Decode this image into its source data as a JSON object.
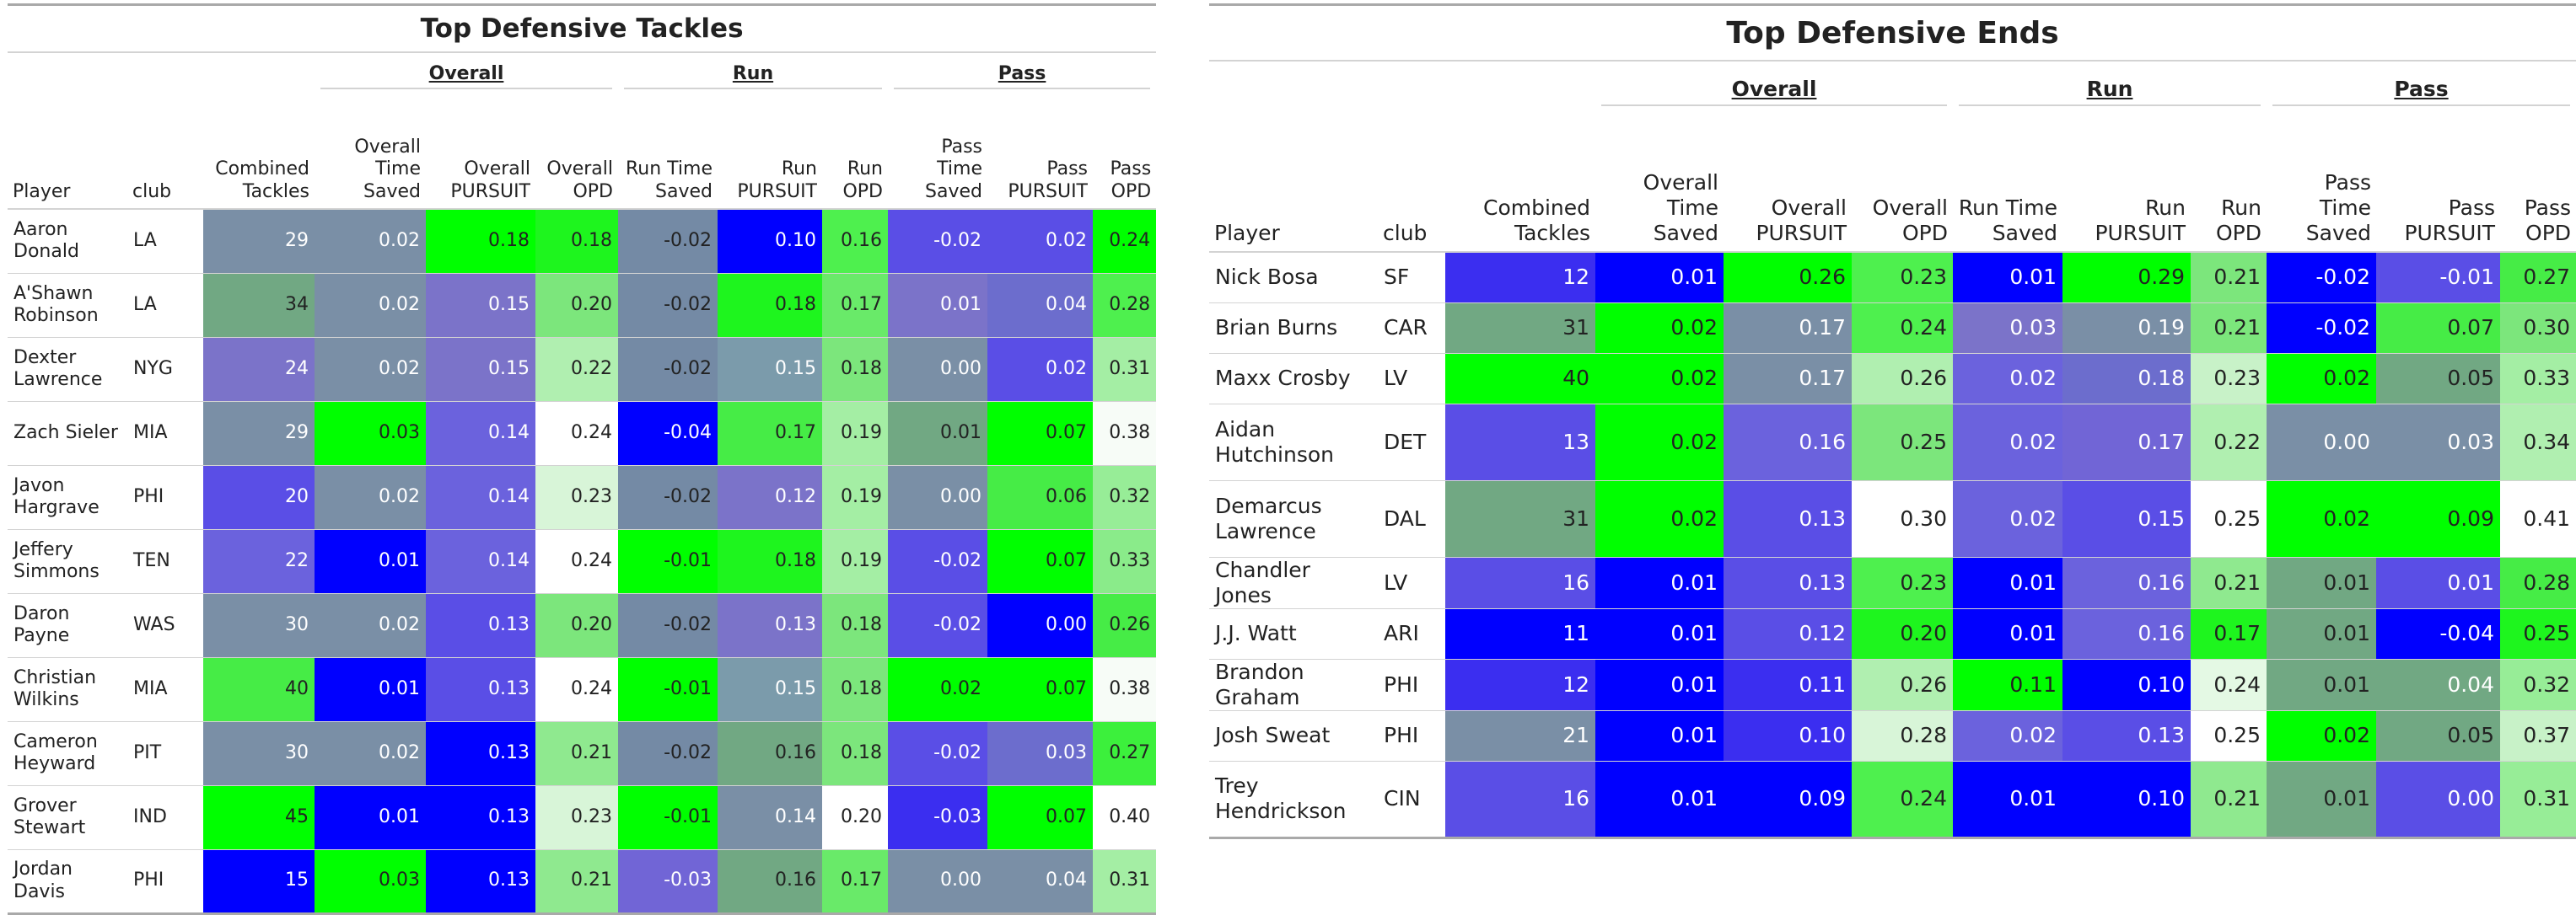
{
  "tables": [
    {
      "title": "Top Defensive Tackles",
      "spanners": {
        "overall": "Overall",
        "run": "Run",
        "pass": "Pass"
      },
      "columns": [
        "Player",
        "club",
        "Combined Tackles",
        "Overall Time Saved",
        "Overall PURSUIT",
        "Overall OPD",
        "Run Time Saved",
        "Run PURSUIT",
        "Run OPD",
        "Pass Time Saved",
        "Pass PURSUIT",
        "Pass OPD"
      ],
      "rows": [
        {
          "player": "Aaron Donald",
          "club": "LA",
          "values": [
            "29",
            "0.02",
            "0.18",
            "0.18",
            "-0.02",
            "0.10",
            "0.16",
            "-0.02",
            "0.02",
            "0.24"
          ]
        },
        {
          "player": "A'Shawn Robinson",
          "club": "LA",
          "values": [
            "34",
            "0.02",
            "0.15",
            "0.20",
            "-0.02",
            "0.18",
            "0.17",
            "0.01",
            "0.04",
            "0.28"
          ]
        },
        {
          "player": "Dexter Lawrence",
          "club": "NYG",
          "values": [
            "24",
            "0.02",
            "0.15",
            "0.22",
            "-0.02",
            "0.15",
            "0.18",
            "0.00",
            "0.02",
            "0.31"
          ]
        },
        {
          "player": "Zach Sieler",
          "club": "MIA",
          "values": [
            "29",
            "0.03",
            "0.14",
            "0.24",
            "-0.04",
            "0.17",
            "0.19",
            "0.01",
            "0.07",
            "0.38"
          ]
        },
        {
          "player": "Javon Hargrave",
          "club": "PHI",
          "values": [
            "20",
            "0.02",
            "0.14",
            "0.23",
            "-0.02",
            "0.12",
            "0.19",
            "0.00",
            "0.06",
            "0.32"
          ]
        },
        {
          "player": "Jeffery Simmons",
          "club": "TEN",
          "values": [
            "22",
            "0.01",
            "0.14",
            "0.24",
            "-0.01",
            "0.18",
            "0.19",
            "-0.02",
            "0.07",
            "0.33"
          ]
        },
        {
          "player": "Daron Payne",
          "club": "WAS",
          "values": [
            "30",
            "0.02",
            "0.13",
            "0.20",
            "-0.02",
            "0.13",
            "0.18",
            "-0.02",
            "0.00",
            "0.26"
          ]
        },
        {
          "player": "Christian Wilkins",
          "club": "MIA",
          "values": [
            "40",
            "0.01",
            "0.13",
            "0.24",
            "-0.01",
            "0.15",
            "0.18",
            "0.02",
            "0.07",
            "0.38"
          ]
        },
        {
          "player": "Cameron Heyward",
          "club": "PIT",
          "values": [
            "30",
            "0.02",
            "0.13",
            "0.21",
            "-0.02",
            "0.16",
            "0.18",
            "-0.02",
            "0.03",
            "0.27"
          ]
        },
        {
          "player": "Grover Stewart",
          "club": "IND",
          "values": [
            "45",
            "0.01",
            "0.13",
            "0.23",
            "-0.01",
            "0.14",
            "0.20",
            "-0.03",
            "0.07",
            "0.40"
          ]
        },
        {
          "player": "Jordan Davis",
          "club": "PHI",
          "values": [
            "15",
            "0.03",
            "0.13",
            "0.21",
            "-0.03",
            "0.16",
            "0.17",
            "0.00",
            "0.04",
            "0.31"
          ]
        }
      ],
      "cell_colors": [
        [
          "#7a8fa6",
          "#7a8fa6",
          "#00ff00",
          "#1ef51e",
          "#748aa5",
          "#0000ff",
          "#4ef04e",
          "#5a4ee6",
          "#5a4ee6",
          "#00ff00"
        ],
        [
          "#71a883",
          "#7a8fa6",
          "#7b73c9",
          "#7ce67c",
          "#748aa5",
          "#1ef51e",
          "#69ea69",
          "#7b73c9",
          "#6c6dcd",
          "#4ef04e"
        ],
        [
          "#7b73c9",
          "#7a8fa6",
          "#7b73c9",
          "#b0efb0",
          "#748aa5",
          "#7b9bab",
          "#7ce67c",
          "#7a8fa6",
          "#5a4ee6",
          "#a4eea4"
        ],
        [
          "#7a8fa6",
          "#00ff00",
          "#6b62dd",
          "#ffffff",
          "#0000ff",
          "#46ec46",
          "#a4eea4",
          "#71a883",
          "#00ff00",
          "#f7fcf7"
        ],
        [
          "#5a4ee6",
          "#7a8fa6",
          "#6b62dd",
          "#d8f5d8",
          "#748aa5",
          "#7b73c9",
          "#a4eea4",
          "#7a8fa6",
          "#46ec46",
          "#97ed97"
        ],
        [
          "#6b62dd",
          "#0000ff",
          "#6b62dd",
          "#ffffff",
          "#00ff00",
          "#1ef51e",
          "#a4eea4",
          "#5a4ee6",
          "#00ff00",
          "#8aeb8a"
        ],
        [
          "#7a8fa6",
          "#7a8fa6",
          "#5a4ee6",
          "#7ce67c",
          "#748aa5",
          "#7b73c9",
          "#7ce67c",
          "#5a4ee6",
          "#0000ff",
          "#46ec46"
        ],
        [
          "#46ec46",
          "#0000ff",
          "#5a4ee6",
          "#ffffff",
          "#00ff00",
          "#7b9bab",
          "#7ce67c",
          "#00ff00",
          "#00ff00",
          "#f7fcf7"
        ],
        [
          "#7a8fa6",
          "#7a8fa6",
          "#0000ff",
          "#8fe98f",
          "#748aa5",
          "#71a883",
          "#7ce67c",
          "#5a4ee6",
          "#6c6dcd",
          "#3cf03c"
        ],
        [
          "#00ff00",
          "#0000ff",
          "#0000ff",
          "#d8f5d8",
          "#00ff00",
          "#7a8fa6",
          "#ffffff",
          "#3b2ef0",
          "#00ff00",
          "#ffffff"
        ],
        [
          "#0000ff",
          "#00ff00",
          "#0000ff",
          "#8fe98f",
          "#7165d6",
          "#71a883",
          "#69ea69",
          "#7a8fa6",
          "#7a8fa6",
          "#a4eea4"
        ]
      ],
      "cell_text_colors": [
        [
          "#ffffff",
          "#ffffff",
          "#222222",
          "#222222",
          "#222222",
          "#ffffff",
          "#222222",
          "#ffffff",
          "#ffffff",
          "#222222"
        ],
        [
          "#222222",
          "#ffffff",
          "#ffffff",
          "#222222",
          "#222222",
          "#222222",
          "#222222",
          "#ffffff",
          "#ffffff",
          "#222222"
        ],
        [
          "#ffffff",
          "#ffffff",
          "#ffffff",
          "#222222",
          "#222222",
          "#ffffff",
          "#222222",
          "#ffffff",
          "#ffffff",
          "#222222"
        ],
        [
          "#ffffff",
          "#222222",
          "#ffffff",
          "#222222",
          "#ffffff",
          "#222222",
          "#222222",
          "#222222",
          "#222222",
          "#222222"
        ],
        [
          "#ffffff",
          "#ffffff",
          "#ffffff",
          "#222222",
          "#222222",
          "#ffffff",
          "#222222",
          "#ffffff",
          "#222222",
          "#222222"
        ],
        [
          "#ffffff",
          "#ffffff",
          "#ffffff",
          "#222222",
          "#222222",
          "#222222",
          "#222222",
          "#ffffff",
          "#222222",
          "#222222"
        ],
        [
          "#ffffff",
          "#ffffff",
          "#ffffff",
          "#222222",
          "#222222",
          "#ffffff",
          "#222222",
          "#ffffff",
          "#ffffff",
          "#222222"
        ],
        [
          "#222222",
          "#ffffff",
          "#ffffff",
          "#222222",
          "#222222",
          "#ffffff",
          "#222222",
          "#222222",
          "#222222",
          "#222222"
        ],
        [
          "#ffffff",
          "#ffffff",
          "#ffffff",
          "#222222",
          "#222222",
          "#222222",
          "#222222",
          "#ffffff",
          "#ffffff",
          "#222222"
        ],
        [
          "#222222",
          "#ffffff",
          "#ffffff",
          "#222222",
          "#222222",
          "#ffffff",
          "#222222",
          "#ffffff",
          "#222222",
          "#222222"
        ],
        [
          "#ffffff",
          "#222222",
          "#ffffff",
          "#222222",
          "#ffffff",
          "#222222",
          "#222222",
          "#ffffff",
          "#ffffff",
          "#222222"
        ]
      ]
    },
    {
      "title": "Top Defensive Ends",
      "spanners": {
        "overall": "Overall",
        "run": "Run",
        "pass": "Pass"
      },
      "columns": [
        "Player",
        "club",
        "Combined Tackles",
        "Overall Time Saved",
        "Overall PURSUIT",
        "Overall OPD",
        "Run Time Saved",
        "Run PURSUIT",
        "Run OPD",
        "Pass Time Saved",
        "Pass PURSUIT",
        "Pass OPD"
      ],
      "rows": [
        {
          "player": "Nick Bosa",
          "club": "SF",
          "values": [
            "12",
            "0.01",
            "0.26",
            "0.23",
            "0.01",
            "0.29",
            "0.21",
            "-0.02",
            "-0.01",
            "0.27"
          ]
        },
        {
          "player": "Brian Burns",
          "club": "CAR",
          "values": [
            "31",
            "0.02",
            "0.17",
            "0.24",
            "0.03",
            "0.19",
            "0.21",
            "-0.02",
            "0.07",
            "0.30"
          ]
        },
        {
          "player": "Maxx Crosby",
          "club": "LV",
          "values": [
            "40",
            "0.02",
            "0.17",
            "0.26",
            "0.02",
            "0.18",
            "0.23",
            "0.02",
            "0.05",
            "0.33"
          ]
        },
        {
          "player": "Aidan Hutchinson",
          "club": "DET",
          "values": [
            "13",
            "0.02",
            "0.16",
            "0.25",
            "0.02",
            "0.17",
            "0.22",
            "0.00",
            "0.03",
            "0.34"
          ]
        },
        {
          "player": "Demarcus Lawrence",
          "club": "DAL",
          "values": [
            "31",
            "0.02",
            "0.13",
            "0.30",
            "0.02",
            "0.15",
            "0.25",
            "0.02",
            "0.09",
            "0.41"
          ]
        },
        {
          "player": "Chandler Jones",
          "club": "LV",
          "values": [
            "16",
            "0.01",
            "0.13",
            "0.23",
            "0.01",
            "0.16",
            "0.21",
            "0.01",
            "0.01",
            "0.28"
          ]
        },
        {
          "player": "J.J. Watt",
          "club": "ARI",
          "values": [
            "11",
            "0.01",
            "0.12",
            "0.20",
            "0.01",
            "0.16",
            "0.17",
            "0.01",
            "-0.04",
            "0.25"
          ]
        },
        {
          "player": "Brandon Graham",
          "club": "PHI",
          "values": [
            "12",
            "0.01",
            "0.11",
            "0.26",
            "0.11",
            "0.10",
            "0.24",
            "0.01",
            "0.04",
            "0.32"
          ]
        },
        {
          "player": "Josh Sweat",
          "club": "PHI",
          "values": [
            "21",
            "0.01",
            "0.10",
            "0.28",
            "0.02",
            "0.13",
            "0.25",
            "0.02",
            "0.05",
            "0.37"
          ]
        },
        {
          "player": "Trey Hendrickson",
          "club": "CIN",
          "values": [
            "16",
            "0.01",
            "0.09",
            "0.24",
            "0.01",
            "0.10",
            "0.21",
            "0.01",
            "0.00",
            "0.31"
          ]
        }
      ],
      "cell_colors": [
        [
          "#3b2ef0",
          "#0000ff",
          "#00ff00",
          "#4ef04e",
          "#0000ff",
          "#00ff00",
          "#7ce67c",
          "#0000ff",
          "#5a4ee6",
          "#46ec46"
        ],
        [
          "#71a883",
          "#00ff00",
          "#7a8fa6",
          "#4ef04e",
          "#7b73c9",
          "#7a8fa6",
          "#7ce67c",
          "#0000ff",
          "#46ec46",
          "#7ce67c"
        ],
        [
          "#00ff00",
          "#00ff00",
          "#7a8fa6",
          "#b0efb0",
          "#6b62dd",
          "#6c6dcd",
          "#c8f2c8",
          "#00ff00",
          "#71a883",
          "#a4eea4"
        ],
        [
          "#5a4ee6",
          "#00ff00",
          "#6b62dd",
          "#7ce67c",
          "#6b62dd",
          "#7165d6",
          "#b0efb0",
          "#7a8fa6",
          "#7a8fa6",
          "#b0efb0"
        ],
        [
          "#71a883",
          "#00ff00",
          "#5a4ee6",
          "#ffffff",
          "#6b62dd",
          "#5a4ee6",
          "#ffffff",
          "#00ff00",
          "#00ff00",
          "#ffffff"
        ],
        [
          "#5a4ee6",
          "#0000ff",
          "#5a4ee6",
          "#4ef04e",
          "#0000ff",
          "#6b62dd",
          "#8fe98f",
          "#71a883",
          "#5a4ee6",
          "#46ec46"
        ],
        [
          "#0000ff",
          "#0000ff",
          "#5a4ee6",
          "#1ef51e",
          "#0000ff",
          "#6b62dd",
          "#1ef51e",
          "#71a883",
          "#0000ff",
          "#1ef51e"
        ],
        [
          "#3b2ef0",
          "#0000ff",
          "#3b2ef0",
          "#b0efb0",
          "#00ff00",
          "#0000ff",
          "#e4f9e4",
          "#71a883",
          "#71a883",
          "#97ed97"
        ],
        [
          "#7a8fa6",
          "#0000ff",
          "#3b2ef0",
          "#d8f5d8",
          "#6b62dd",
          "#5a4ee6",
          "#ffffff",
          "#00ff00",
          "#71a883",
          "#c8f2c8"
        ],
        [
          "#5a4ee6",
          "#0000ff",
          "#0000ff",
          "#4ef04e",
          "#0000ff",
          "#0000ff",
          "#8fe98f",
          "#71a883",
          "#5a4ee6",
          "#97ed97"
        ]
      ],
      "cell_text_colors": [
        [
          "#ffffff",
          "#ffffff",
          "#222222",
          "#222222",
          "#ffffff",
          "#222222",
          "#222222",
          "#ffffff",
          "#ffffff",
          "#222222"
        ],
        [
          "#222222",
          "#222222",
          "#ffffff",
          "#222222",
          "#ffffff",
          "#ffffff",
          "#222222",
          "#ffffff",
          "#222222",
          "#222222"
        ],
        [
          "#222222",
          "#222222",
          "#ffffff",
          "#222222",
          "#ffffff",
          "#ffffff",
          "#222222",
          "#222222",
          "#222222",
          "#222222"
        ],
        [
          "#ffffff",
          "#222222",
          "#ffffff",
          "#222222",
          "#ffffff",
          "#ffffff",
          "#222222",
          "#ffffff",
          "#ffffff",
          "#222222"
        ],
        [
          "#222222",
          "#222222",
          "#ffffff",
          "#222222",
          "#ffffff",
          "#ffffff",
          "#222222",
          "#222222",
          "#222222",
          "#222222"
        ],
        [
          "#ffffff",
          "#ffffff",
          "#ffffff",
          "#222222",
          "#ffffff",
          "#ffffff",
          "#222222",
          "#222222",
          "#ffffff",
          "#222222"
        ],
        [
          "#ffffff",
          "#ffffff",
          "#ffffff",
          "#222222",
          "#ffffff",
          "#ffffff",
          "#222222",
          "#222222",
          "#ffffff",
          "#222222"
        ],
        [
          "#ffffff",
          "#ffffff",
          "#ffffff",
          "#222222",
          "#222222",
          "#ffffff",
          "#222222",
          "#222222",
          "#ffffff",
          "#222222"
        ],
        [
          "#ffffff",
          "#ffffff",
          "#ffffff",
          "#222222",
          "#ffffff",
          "#ffffff",
          "#222222",
          "#222222",
          "#222222",
          "#222222"
        ],
        [
          "#ffffff",
          "#ffffff",
          "#ffffff",
          "#222222",
          "#ffffff",
          "#ffffff",
          "#222222",
          "#222222",
          "#ffffff",
          "#222222"
        ]
      ]
    }
  ]
}
